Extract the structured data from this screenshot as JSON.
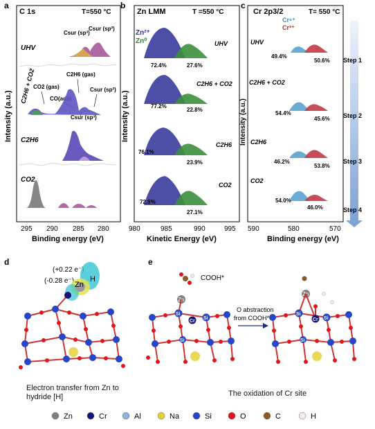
{
  "panels": {
    "a": {
      "letter": "a",
      "title": "C 1s",
      "temp": "T=550 °C",
      "ylabel": "Intensity (a.u.)",
      "xlabel": "Binding energy (eV)",
      "xticks": [
        "295",
        "290",
        "285",
        "280"
      ],
      "rows": [
        "UHV",
        "C2H6 + CO2",
        "C2H6",
        "CO2"
      ],
      "annotations": {
        "csur_sp3": "Csur (sp³)",
        "csur_sp2": "Csur (sp²)",
        "co2_gas": "CO2 (gas)",
        "c2h6_gas": "C2H6 (gas)",
        "co_ads": "CO(ads)",
        "csur_sp2_b": "Csur (sp²)",
        "csur_sp3_b": "Csur (sp³)"
      }
    },
    "b": {
      "letter": "b",
      "title": "Zn LMM",
      "temp": "T =550 °C",
      "ylabel": "Intensity (a.u.)",
      "xlabel": "Kinetic Energy (eV)",
      "xticks": [
        "980",
        "985",
        "990",
        "995"
      ],
      "legend": [
        {
          "label": "Zn²⁺",
          "color": "#2b2f9e"
        },
        {
          "label": "Zn⁰",
          "color": "#1f8a1f"
        }
      ],
      "rows": [
        {
          "label": "UHV",
          "left": "72.4%",
          "right": "27.6%"
        },
        {
          "label": "C2H6 + CO2",
          "left": "77.2%",
          "right": "22.8%"
        },
        {
          "label": "C2H6",
          "left": "76.1%",
          "right": "23.9%"
        },
        {
          "label": "CO2",
          "left": "72.9%",
          "right": "27.1%"
        }
      ]
    },
    "c": {
      "letter": "c",
      "title": "Cr 2p3/2",
      "temp": "T= 550 °C",
      "ylabel": "Intensity (a.u.)",
      "xlabel": "Binding energy (eV)",
      "xticks": [
        "590",
        "580",
        "570"
      ],
      "legend": [
        {
          "label": "Cr⁶⁺",
          "color": "#3a8fc6"
        },
        {
          "label": "Cr³⁺",
          "color": "#c0292f"
        }
      ],
      "rows": [
        {
          "label": "UHV",
          "left": "49.4%",
          "right": "50.6%"
        },
        {
          "label": "C2H6 + CO2",
          "left": "54.4%",
          "right": "45.6%"
        },
        {
          "label": "C2H6",
          "left": "46.2%",
          "right": "53.8%"
        },
        {
          "label": "CO2",
          "left": "54.0%",
          "right": "46.0%"
        }
      ],
      "steps": [
        "Step 1",
        "Step 2",
        "Step 3",
        "Step 4"
      ]
    },
    "d": {
      "letter": "d",
      "charge_plus": "(+0.22 e⁻)",
      "charge_minus": "(-0.28 e⁻)",
      "zn": "Zn",
      "h": "H",
      "caption_line1": "Electron transfer from Zn to",
      "caption_line2": "hydride [H]"
    },
    "e": {
      "letter": "e",
      "species": "COOH*",
      "zn": "Zn",
      "arrow_line1": "O abstraction",
      "arrow_line2": "from COOH*",
      "caption": "The oxidation of Cr site",
      "atom_labels": [
        "Si",
        "Cr",
        "Si",
        "Si",
        "Cr",
        "Si",
        "Si",
        "Si"
      ]
    }
  },
  "legend_atoms": [
    {
      "label": "Zn",
      "color": "#7f7f7f"
    },
    {
      "label": "Cr",
      "color": "#15147a"
    },
    {
      "label": "Al",
      "color": "#8fb3d9"
    },
    {
      "label": "Na",
      "color": "#e2d23a"
    },
    {
      "label": "Si",
      "color": "#2546c8"
    },
    {
      "label": "O",
      "color": "#e0161b"
    },
    {
      "label": "C",
      "color": "#8a5a2b"
    },
    {
      "label": "H",
      "color": "#f3eaea"
    }
  ]
}
